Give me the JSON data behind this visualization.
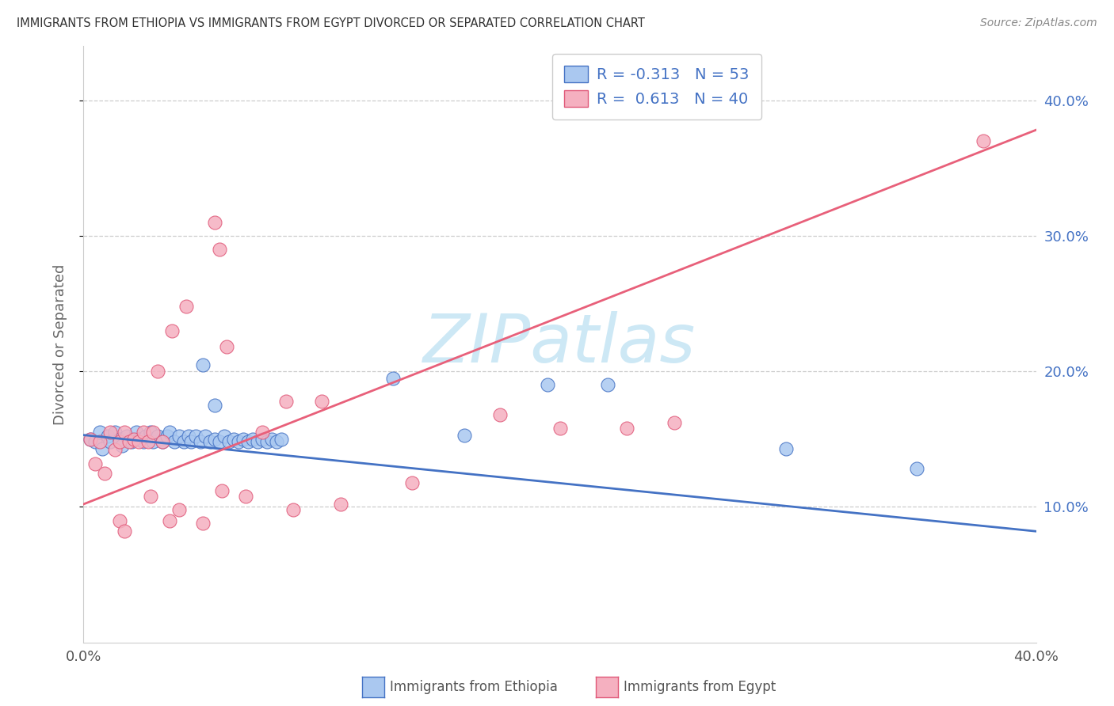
{
  "title": "IMMIGRANTS FROM ETHIOPIA VS IMMIGRANTS FROM EGYPT DIVORCED OR SEPARATED CORRELATION CHART",
  "source": "Source: ZipAtlas.com",
  "ylabel": "Divorced or Separated",
  "xlim": [
    0.0,
    0.4
  ],
  "ylim": [
    0.0,
    0.44
  ],
  "ethiopia_color": "#aac8f0",
  "ethiopia_edge": "#4472c4",
  "egypt_color": "#f5b0c0",
  "egypt_edge": "#e05878",
  "ethiopia_line_color": "#4472c4",
  "egypt_line_color": "#e8607a",
  "watermark_color": "#cde8f5",
  "ethiopia_R": -0.313,
  "ethiopia_N": 53,
  "egypt_R": 0.613,
  "egypt_N": 40,
  "legend_label_eth": "Immigrants from Ethiopia",
  "legend_label_egy": "Immigrants from Egypt",
  "ethiopia_points": [
    [
      0.003,
      0.15
    ],
    [
      0.005,
      0.148
    ],
    [
      0.007,
      0.155
    ],
    [
      0.008,
      0.143
    ],
    [
      0.01,
      0.152
    ],
    [
      0.011,
      0.148
    ],
    [
      0.013,
      0.155
    ],
    [
      0.015,
      0.15
    ],
    [
      0.016,
      0.145
    ],
    [
      0.018,
      0.152
    ],
    [
      0.02,
      0.148
    ],
    [
      0.022,
      0.155
    ],
    [
      0.023,
      0.15
    ],
    [
      0.025,
      0.148
    ],
    [
      0.026,
      0.152
    ],
    [
      0.028,
      0.155
    ],
    [
      0.029,
      0.148
    ],
    [
      0.031,
      0.152
    ],
    [
      0.033,
      0.148
    ],
    [
      0.035,
      0.152
    ],
    [
      0.036,
      0.155
    ],
    [
      0.038,
      0.148
    ],
    [
      0.04,
      0.152
    ],
    [
      0.042,
      0.148
    ],
    [
      0.044,
      0.152
    ],
    [
      0.045,
      0.148
    ],
    [
      0.047,
      0.152
    ],
    [
      0.049,
      0.148
    ],
    [
      0.051,
      0.152
    ],
    [
      0.053,
      0.148
    ],
    [
      0.055,
      0.15
    ],
    [
      0.057,
      0.148
    ],
    [
      0.059,
      0.152
    ],
    [
      0.061,
      0.148
    ],
    [
      0.063,
      0.15
    ],
    [
      0.065,
      0.148
    ],
    [
      0.067,
      0.15
    ],
    [
      0.069,
      0.148
    ],
    [
      0.071,
      0.15
    ],
    [
      0.073,
      0.148
    ],
    [
      0.075,
      0.15
    ],
    [
      0.077,
      0.148
    ],
    [
      0.079,
      0.15
    ],
    [
      0.081,
      0.148
    ],
    [
      0.083,
      0.15
    ],
    [
      0.05,
      0.205
    ],
    [
      0.195,
      0.19
    ],
    [
      0.055,
      0.175
    ],
    [
      0.16,
      0.153
    ],
    [
      0.295,
      0.143
    ],
    [
      0.35,
      0.128
    ],
    [
      0.22,
      0.19
    ],
    [
      0.13,
      0.195
    ]
  ],
  "egypt_points": [
    [
      0.003,
      0.15
    ],
    [
      0.005,
      0.132
    ],
    [
      0.007,
      0.148
    ],
    [
      0.009,
      0.125
    ],
    [
      0.011,
      0.155
    ],
    [
      0.013,
      0.142
    ],
    [
      0.015,
      0.148
    ],
    [
      0.017,
      0.155
    ],
    [
      0.019,
      0.148
    ],
    [
      0.021,
      0.15
    ],
    [
      0.023,
      0.148
    ],
    [
      0.025,
      0.155
    ],
    [
      0.027,
      0.148
    ],
    [
      0.029,
      0.155
    ],
    [
      0.031,
      0.2
    ],
    [
      0.033,
      0.148
    ],
    [
      0.037,
      0.23
    ],
    [
      0.043,
      0.248
    ],
    [
      0.055,
      0.31
    ],
    [
      0.057,
      0.29
    ],
    [
      0.015,
      0.09
    ],
    [
      0.017,
      0.082
    ],
    [
      0.06,
      0.218
    ],
    [
      0.075,
      0.155
    ],
    [
      0.085,
      0.178
    ],
    [
      0.1,
      0.178
    ],
    [
      0.175,
      0.168
    ],
    [
      0.2,
      0.158
    ],
    [
      0.248,
      0.162
    ],
    [
      0.028,
      0.108
    ],
    [
      0.036,
      0.09
    ],
    [
      0.04,
      0.098
    ],
    [
      0.05,
      0.088
    ],
    [
      0.058,
      0.112
    ],
    [
      0.068,
      0.108
    ],
    [
      0.088,
      0.098
    ],
    [
      0.108,
      0.102
    ],
    [
      0.138,
      0.118
    ],
    [
      0.228,
      0.158
    ],
    [
      0.378,
      0.37
    ]
  ]
}
